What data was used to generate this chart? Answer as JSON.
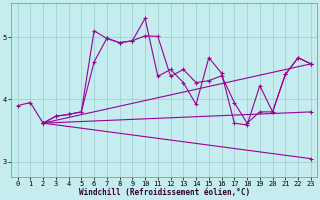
{
  "xlabel": "Windchill (Refroidissement éolien,°C)",
  "bg_color": "#c5ecee",
  "line_color": "#990099",
  "grid_color": "#99cccc",
  "xlim": [
    -0.5,
    23.5
  ],
  "ylim": [
    2.75,
    5.55
  ],
  "yticks": [
    3,
    4,
    5
  ],
  "xticks": [
    0,
    1,
    2,
    3,
    4,
    5,
    6,
    7,
    8,
    9,
    10,
    11,
    12,
    13,
    14,
    15,
    16,
    17,
    18,
    19,
    20,
    21,
    22,
    23
  ],
  "line1_x": [
    0,
    1,
    2,
    3,
    4,
    5,
    6,
    7,
    8,
    9,
    10,
    11,
    12,
    13,
    14,
    15,
    16,
    17,
    18,
    19,
    20,
    21,
    22,
    23
  ],
  "line1_y": [
    3.9,
    3.95,
    3.62,
    3.73,
    3.76,
    3.8,
    4.6,
    4.98,
    4.91,
    4.94,
    5.02,
    5.01,
    4.37,
    4.48,
    4.27,
    4.3,
    4.38,
    3.95,
    3.62,
    3.8,
    3.8,
    4.4,
    4.67,
    4.57
  ],
  "line2_x": [
    2,
    3,
    4,
    5,
    6,
    7,
    8,
    9,
    10,
    11,
    12,
    13,
    14,
    15,
    16,
    17,
    18,
    19,
    20,
    21,
    22,
    23
  ],
  "line2_y": [
    3.62,
    3.73,
    3.76,
    3.8,
    5.1,
    4.98,
    4.91,
    4.94,
    5.3,
    4.37,
    4.48,
    4.27,
    3.92,
    4.67,
    4.42,
    3.62,
    3.59,
    4.22,
    3.8,
    4.4,
    4.67,
    4.57
  ],
  "line3_x": [
    2,
    23
  ],
  "line3_y": [
    3.62,
    4.57
  ],
  "line4_x": [
    2,
    23
  ],
  "line4_y": [
    3.62,
    3.8
  ],
  "line5_x": [
    2,
    23
  ],
  "line5_y": [
    3.62,
    3.05
  ]
}
